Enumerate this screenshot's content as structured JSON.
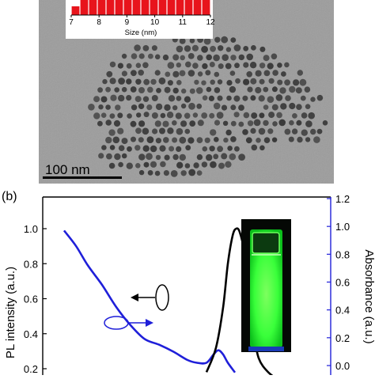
{
  "panel_a": {
    "scale_bar_label": "100 nm",
    "inset_histogram": {
      "type": "bar",
      "xlabel": "Size (nm)",
      "x_ticks": [
        "7",
        "8",
        "9",
        "10",
        "11",
        "12"
      ],
      "xlim": [
        7,
        12
      ],
      "bar_color": "#e8141c"
    },
    "colors": {
      "tem_background": "#9c9c9c",
      "particle": "#3a3a3a"
    }
  },
  "panel_b": {
    "label": "(b)",
    "colors": {
      "pl_curve": "#000000",
      "abs_curve": "#1f1fd9",
      "right_axis": "#1f1fd9",
      "vial_glow": "#39ff3a"
    }
  },
  "chart_data": {
    "type": "line",
    "ylabel": "PL intensity (a.u.)",
    "y2label": "Absorbance (a.u.)",
    "y_ticks": [
      "0.2",
      "0.4",
      "0.6",
      "0.8",
      "1.0"
    ],
    "y2_ticks": [
      "0.0",
      "0.2",
      "0.4",
      "0.6",
      "0.8",
      "1.0",
      "1.2"
    ],
    "ylim": [
      0.18,
      1.08
    ],
    "y2lim": [
      -0.02,
      1.2
    ],
    "x_domain": [
      0,
      100
    ],
    "series": [
      {
        "axis": "left",
        "x": [
          60,
          64,
          67,
          69,
          71,
          72.5,
          74,
          76,
          78,
          80,
          82,
          86,
          92
        ],
        "y": [
          0.18,
          0.32,
          0.55,
          0.8,
          0.96,
          1.0,
          0.98,
          0.86,
          0.62,
          0.4,
          0.26,
          0.18,
          0.12
        ]
      },
      {
        "axis": "right",
        "x": [
          0,
          5,
          10,
          16,
          22,
          28,
          34,
          40,
          46,
          52,
          56,
          60,
          63,
          65,
          67,
          69,
          72
        ],
        "y": [
          0.97,
          0.86,
          0.72,
          0.58,
          0.42,
          0.29,
          0.19,
          0.15,
          0.1,
          0.04,
          0.02,
          0.02,
          0.08,
          0.11,
          0.08,
          0.02,
          -0.05
        ]
      }
    ]
  }
}
